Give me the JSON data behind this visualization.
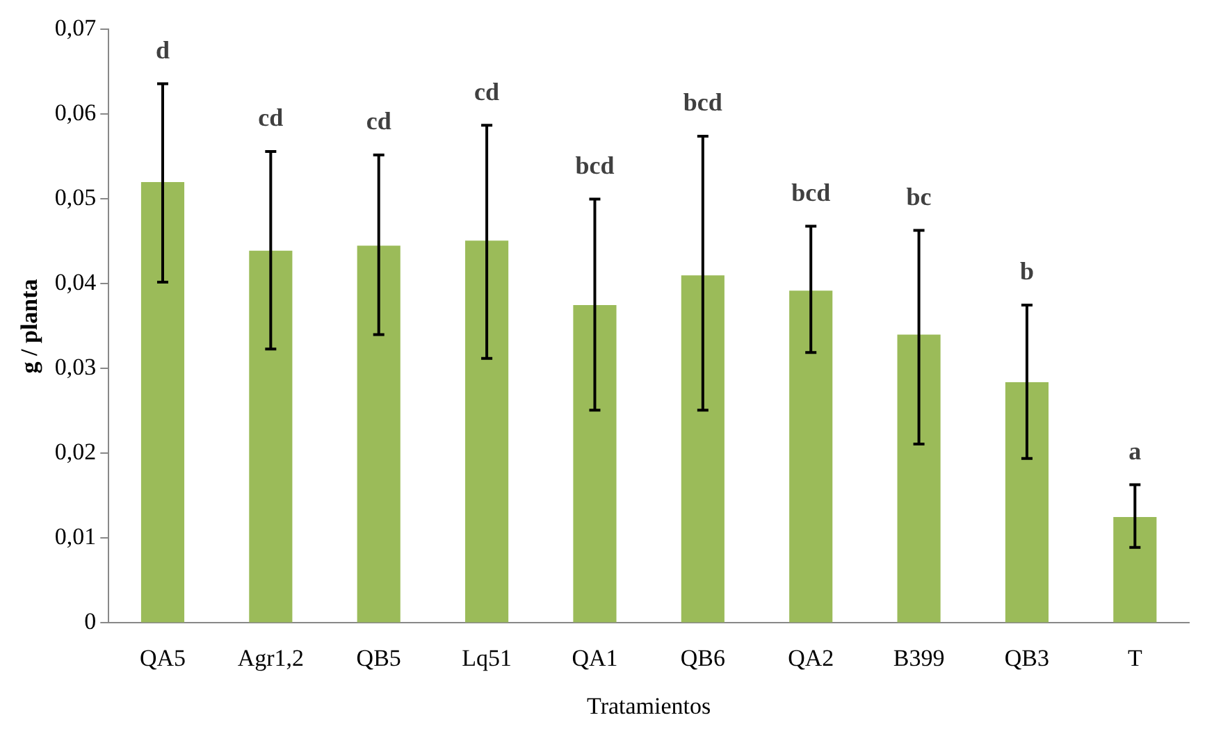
{
  "chart_data": {
    "type": "bar",
    "xlabel": "Tratamientos",
    "ylabel": "g / planta",
    "categories": [
      "QA5",
      "Agr1,2",
      "QB5",
      "Lq51",
      "QA1",
      "QB6",
      "QA2",
      "B399",
      "QB3",
      "T"
    ],
    "values": [
      0.052,
      0.0439,
      0.0445,
      0.0451,
      0.0375,
      0.041,
      0.0392,
      0.034,
      0.0284,
      0.0125
    ],
    "errors": [
      [
        0.0402,
        0.0636
      ],
      [
        0.0323,
        0.0556
      ],
      [
        0.034,
        0.0552
      ],
      [
        0.0312,
        0.0587
      ],
      [
        0.0251,
        0.05
      ],
      [
        0.0251,
        0.0574
      ],
      [
        0.0319,
        0.0468
      ],
      [
        0.0211,
        0.0463
      ],
      [
        0.0194,
        0.0375
      ],
      [
        0.0089,
        0.0163
      ]
    ],
    "color": "#9bbb59",
    "ylim": [
      0,
      0.07
    ],
    "yticks": [
      0,
      {
        "value": 0.01,
        "label": "0,01"
      },
      {
        "value": 0.02,
        "label": "0,02"
      },
      {
        "value": 0.03,
        "label": "0,03"
      },
      {
        "value": 0.04,
        "label": "0,04"
      },
      {
        "value": 0.05,
        "label": "0,05"
      },
      {
        "value": 0.06,
        "label": "0,06"
      },
      {
        "value": 0.07,
        "label": "0,07"
      }
    ],
    "annotations": [
      {
        "text": "d",
        "x": "QA5",
        "y": 0.0636
      },
      {
        "text": "cd",
        "x": "Agr1,2",
        "y": 0.0556
      },
      {
        "text": "cd",
        "x": "QB5",
        "y": 0.0552
      },
      {
        "text": "cd",
        "x": "Lq51",
        "y": 0.0587
      },
      {
        "text": "bcd",
        "x": "QA1",
        "y": 0.05
      },
      {
        "text": "bcd",
        "x": "QB6",
        "y": 0.0574
      },
      {
        "text": "bcd",
        "x": "QA2",
        "y": 0.0468
      },
      {
        "text": "bc",
        "x": "B399",
        "y": 0.0463
      },
      {
        "text": "b",
        "x": "QB3",
        "y": 0.0375
      },
      {
        "text": "a",
        "x": "T",
        "y": 0.0163
      }
    ],
    "grid": false,
    "legend": false
  }
}
